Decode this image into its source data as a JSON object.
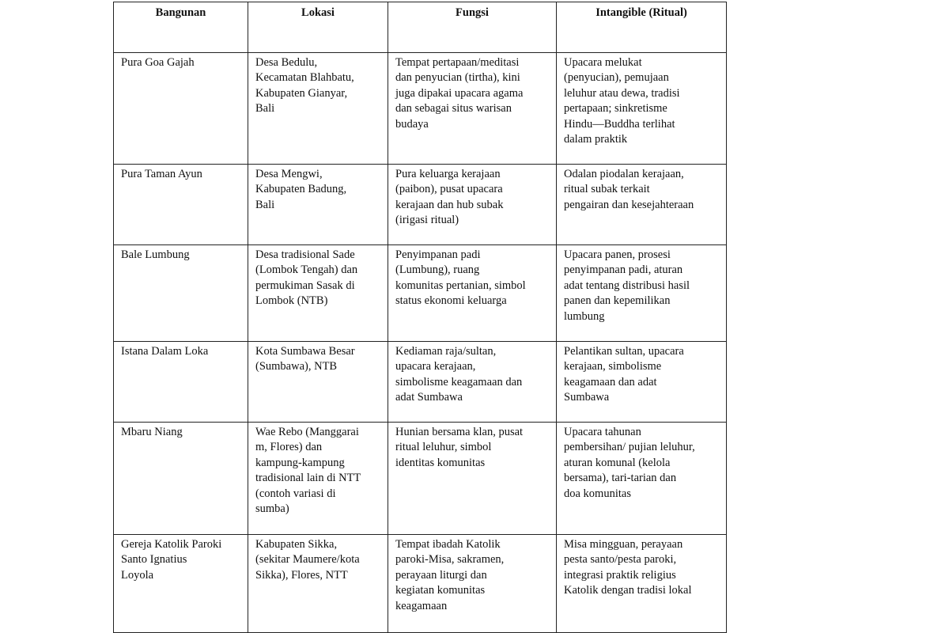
{
  "headers": [
    "Bangunan",
    "Lokasi",
    "Fungsi",
    "Intangible (Ritual)"
  ],
  "rows": [
    [
      "Pura Goa Gajah",
      "Desa Bedulu,\nKecamatan Blahbatu,\nKabupaten Gianyar,\nBali",
      "Tempat pertapaan/meditasi\ndan penyucian (tirtha), kini\njuga dipakai upacara agama\ndan sebagai situs warisan\nbudaya",
      "Upacara melukat\n(penyucian), pemujaan\nleluhur atau dewa, tradisi\npertapaan; sinkretisme\nHindu—Buddha terlihat\ndalam praktik"
    ],
    [
      "Pura Taman Ayun",
      "Desa Mengwi,\nKabupaten Badung,\nBali",
      "Pura keluarga kerajaan\n(paibon), pusat upacara\nkerajaan dan hub subak\n(irigasi ritual)",
      "Odalan piodalan kerajaan,\nritual subak terkait\npengairan dan kesejahteraan"
    ],
    [
      "Bale Lumbung",
      "Desa tradisional Sade\n(Lombok Tengah) dan\npermukiman Sasak di\nLombok (NTB)",
      "Penyimpanan padi\n(Lumbung), ruang\nkomunitas pertanian, simbol\nstatus ekonomi keluarga",
      " Upacara panen, prosesi\npenyimpanan padi, aturan\nadat tentang distribusi hasil\npanen dan kepemilikan\nlumbung"
    ],
    [
      "Istana Dalam Loka",
      "Kota Sumbawa Besar\n(Sumbawa), NTB",
      "Kediaman raja/sultan,\nupacara kerajaan,\nsimbolisme keagamaan dan\nadat Sumbawa",
      "Pelantikan sultan, upacara\nkerajaan, simbolisme\nkeagamaan dan adat\nSumbawa"
    ],
    [
      "Mbaru Niang",
      "Wae Rebo (Manggarai\nm, Flores) dan\nkampung-kampung\ntradisional lain di NTT\n(contoh variasi di\nsumba)",
      "Hunian bersama klan, pusat\nritual leluhur, simbol\nidentitas komunitas",
      "Upacara tahunan\npembersihan/ pujian leluhur,\naturan komunal (kelola\nbersama), tari-tarian dan\ndoa komunitas"
    ],
    [
      "Gereja Katolik Paroki\nSanto Ignatius\nLoyola",
      "Kabupaten Sikka,\n(sekitar Maumere/kota\nSikka), Flores, NTT",
      "Tempat ibadah Katolik\nparoki-Misa, sakramen,\nperayaan liturgi dan\nkegiatan komunitas\nkeagamaan",
      "Misa mingguan, perayaan\npesta santo/pesta paroki,\nintegrasi praktik religius\nKatolik dengan tradisi lokal"
    ]
  ]
}
